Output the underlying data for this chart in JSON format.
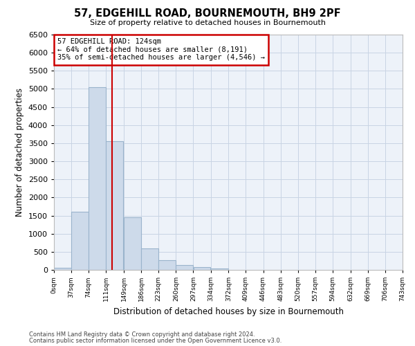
{
  "title": "57, EDGEHILL ROAD, BOURNEMOUTH, BH9 2PF",
  "subtitle": "Size of property relative to detached houses in Bournemouth",
  "xlabel": "Distribution of detached houses by size in Bournemouth",
  "ylabel": "Number of detached properties",
  "footnote1": "Contains HM Land Registry data © Crown copyright and database right 2024.",
  "footnote2": "Contains public sector information licensed under the Open Government Licence v3.0.",
  "bar_color": "#cddaea",
  "bar_edge_color": "#9ab4cc",
  "annotation_box_color": "#cc0000",
  "vline_color": "#cc0000",
  "annotation_line1": "57 EDGEHILL ROAD: 124sqm",
  "annotation_line2": "← 64% of detached houses are smaller (8,191)",
  "annotation_line3": "35% of semi-detached houses are larger (4,546) →",
  "property_size_sqm": 124,
  "bins": [
    0,
    37,
    74,
    111,
    149,
    186,
    223,
    260,
    297,
    334,
    372,
    409,
    446,
    483,
    520,
    557,
    594,
    632,
    669,
    706,
    743
  ],
  "bin_labels": [
    "0sqm",
    "37sqm",
    "74sqm",
    "111sqm",
    "149sqm",
    "186sqm",
    "223sqm",
    "260sqm",
    "297sqm",
    "334sqm",
    "372sqm",
    "409sqm",
    "446sqm",
    "483sqm",
    "520sqm",
    "557sqm",
    "594sqm",
    "632sqm",
    "669sqm",
    "706sqm",
    "743sqm"
  ],
  "bar_heights": [
    50,
    1600,
    5050,
    3550,
    1450,
    600,
    270,
    140,
    80,
    30,
    0,
    0,
    0,
    0,
    0,
    0,
    0,
    0,
    0,
    0
  ],
  "ylim": [
    0,
    6500
  ],
  "yticks": [
    0,
    500,
    1000,
    1500,
    2000,
    2500,
    3000,
    3500,
    4000,
    4500,
    5000,
    5500,
    6000,
    6500
  ],
  "grid_color": "#c8d4e4",
  "background_color": "#edf2f9"
}
